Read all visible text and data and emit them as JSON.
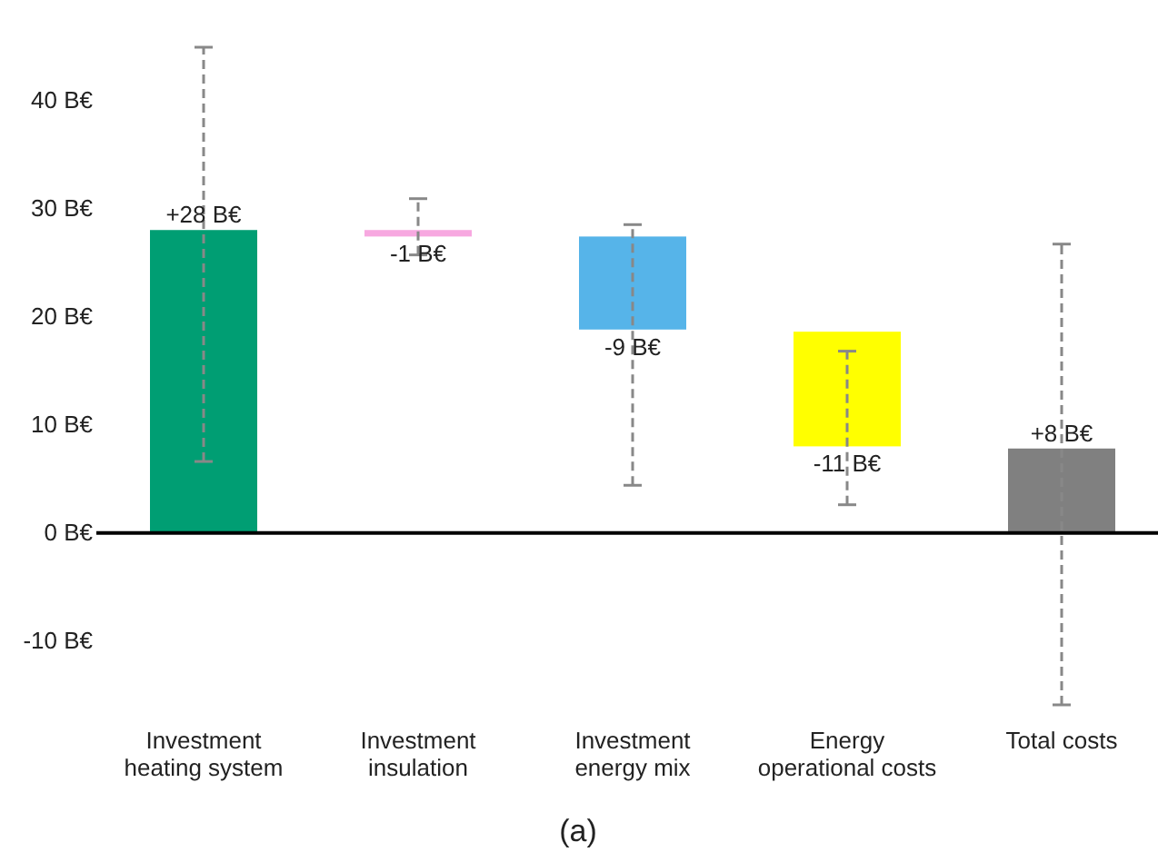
{
  "chart_data": {
    "type": "bar",
    "categories": [
      "Investment\nheating system",
      "Investment\ninsulation",
      "Investment\nenergy mix",
      "Energy\noperational costs",
      "Total costs"
    ],
    "values": [
      28,
      -0.6,
      -8.6,
      -10.6,
      7.8
    ],
    "base": [
      0,
      28,
      27.4,
      18.6,
      0
    ],
    "colors": [
      "#009e73",
      "#f7a8e0",
      "#56b4e9",
      "#ffff00",
      "#808080"
    ],
    "errors": [
      [
        6.6,
        44.9
      ],
      [
        25.7,
        30.9
      ],
      [
        4.4,
        28.5
      ],
      [
        2.6,
        16.8
      ],
      [
        -15.9,
        26.7
      ]
    ],
    "ylim": [
      -15.9,
      44.9
    ],
    "value_labels": [
      "+28 B€",
      "-1 B€",
      "-9 B€",
      "-11 B€",
      "+8 B€"
    ],
    "yticks": [
      {
        "value": -10,
        "label": "-10 B€"
      },
      {
        "value": 0,
        "label": "0 B€"
      },
      {
        "value": 10,
        "label": "10 B€"
      },
      {
        "value": 20,
        "label": "20 B€"
      },
      {
        "value": 30,
        "label": "30 B€"
      },
      {
        "value": 40,
        "label": "40 B€"
      }
    ],
    "annotations": [
      "(a)"
    ]
  }
}
